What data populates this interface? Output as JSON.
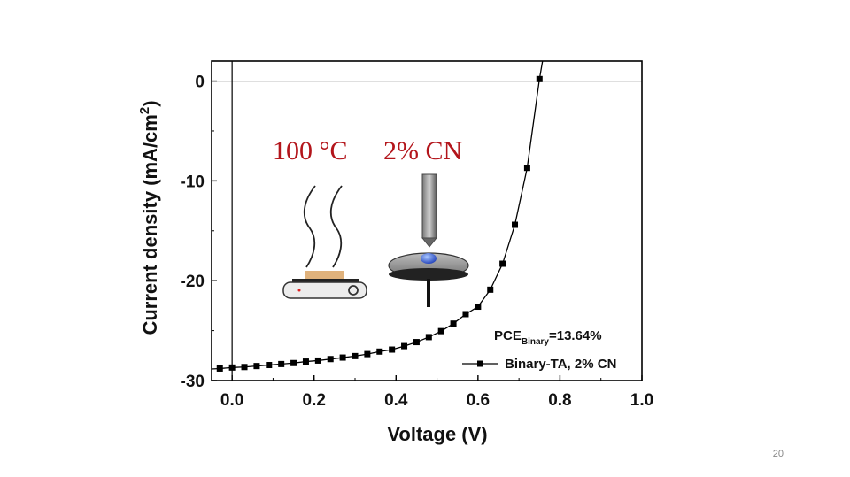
{
  "slide": {
    "page_number": "20"
  },
  "chart_data": {
    "type": "line",
    "xlabel": "Voltage (V)",
    "ylabel_main": "Current density (mA/cm",
    "ylabel_sup": "2",
    "ylabel_close": ")",
    "xlim": [
      -0.05,
      1.0
    ],
    "ylim": [
      -30,
      2
    ],
    "x_ticks": [
      {
        "v": 0.0,
        "label": "0.0"
      },
      {
        "v": 0.2,
        "label": "0.2"
      },
      {
        "v": 0.4,
        "label": "0.4"
      },
      {
        "v": 0.6,
        "label": "0.6"
      },
      {
        "v": 0.8,
        "label": "0.8"
      },
      {
        "v": 1.0,
        "label": "1.0"
      }
    ],
    "y_ticks": [
      {
        "v": 0,
        "label": "0"
      },
      {
        "v": -10,
        "label": "-10"
      },
      {
        "v": -20,
        "label": "-20"
      },
      {
        "v": -30,
        "label": "-30"
      }
    ],
    "zero_lines": true,
    "legend_position": "bottom-right",
    "series": [
      {
        "name": "Binary-TA, 2% CN",
        "x": [
          -0.03,
          0.0,
          0.03,
          0.06,
          0.09,
          0.12,
          0.15,
          0.18,
          0.21,
          0.24,
          0.27,
          0.3,
          0.33,
          0.36,
          0.39,
          0.42,
          0.45,
          0.48,
          0.51,
          0.54,
          0.57,
          0.6,
          0.63,
          0.66,
          0.69,
          0.72,
          0.75
        ],
        "y": [
          -28.8,
          -28.7,
          -28.65,
          -28.55,
          -28.45,
          -28.35,
          -28.25,
          -28.1,
          -28.0,
          -27.85,
          -27.7,
          -27.55,
          -27.35,
          -27.1,
          -26.9,
          -26.55,
          -26.15,
          -25.65,
          -25.05,
          -24.3,
          -23.35,
          -22.6,
          -20.9,
          -18.3,
          -14.4,
          -8.7,
          0.2
        ],
        "color": "#000000",
        "marker": "square"
      }
    ],
    "annotations": {
      "pce_label": "PCE",
      "pce_sub": "Binary",
      "pce_value": "=13.64%",
      "inset_temp": "100 °C",
      "inset_additive": "2% CN"
    }
  }
}
